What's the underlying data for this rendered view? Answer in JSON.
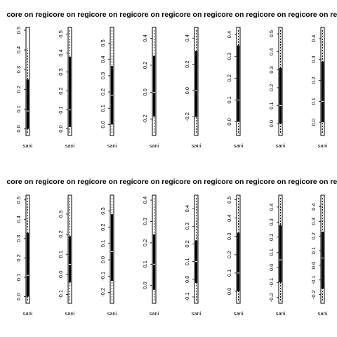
{
  "chart_data": [
    {
      "type": "boxplot",
      "title": "core on regi",
      "category": "sani",
      "yticks": [
        "0.0",
        "0.1",
        "0.2",
        "0.3",
        "0.4",
        "0.5"
      ],
      "ylim": [
        -0.02,
        0.5
      ],
      "box": {
        "min": -0.02,
        "q1": 0.0,
        "median": 0.09,
        "q3": 0.25,
        "max": 0.41
      }
    },
    {
      "type": "boxplot",
      "title": "core on regi",
      "category": "sani",
      "yticks": [
        "0.0",
        "0.1",
        "0.2",
        "0.3",
        "0.4",
        "0.5"
      ],
      "ylim": [
        -0.02,
        0.52
      ],
      "box": {
        "min": -0.02,
        "q1": 0.01,
        "median": 0.1,
        "q3": 0.38,
        "max": 0.52
      }
    },
    {
      "type": "boxplot",
      "title": "core on regi",
      "category": "sani",
      "yticks": [
        "0.0",
        "0.1",
        "0.2",
        "0.3",
        "0.4",
        "0.5"
      ],
      "ylim": [
        -0.05,
        0.58
      ],
      "box": {
        "min": -0.05,
        "q1": 0.0,
        "median": 0.18,
        "q3": 0.36,
        "max": 0.58
      }
    },
    {
      "type": "boxplot",
      "title": "core on regi",
      "category": "sani",
      "yticks": [
        "-0.2",
        "0.0",
        "0.2",
        "0.4"
      ],
      "ylim": [
        -0.3,
        0.46
      ],
      "box": {
        "min": -0.3,
        "q1": -0.18,
        "median": 0.0,
        "q3": 0.27,
        "max": 0.46
      }
    },
    {
      "type": "boxplot",
      "title": "core on regi",
      "category": "sani",
      "yticks": [
        "-0.2",
        "0.0",
        "0.2",
        "0.4"
      ],
      "ylim": [
        -0.32,
        0.46
      ],
      "box": {
        "min": -0.32,
        "q1": -0.2,
        "median": 0.0,
        "q3": 0.3,
        "max": 0.46
      }
    },
    {
      "type": "boxplot",
      "title": "core on regi",
      "category": "sani",
      "yticks": [
        "0.0",
        "0.1",
        "0.2",
        "0.3",
        "0.4"
      ],
      "ylim": [
        -0.05,
        0.42
      ],
      "box": {
        "min": -0.05,
        "q1": 0.0,
        "median": 0.1,
        "q3": 0.35,
        "max": 0.42
      }
    },
    {
      "type": "boxplot",
      "title": "core on regi",
      "category": "sani",
      "yticks": [
        "0.0",
        "0.1",
        "0.2",
        "0.3",
        "0.4",
        "0.5"
      ],
      "ylim": [
        -0.05,
        0.52
      ],
      "box": {
        "min": -0.05,
        "q1": 0.0,
        "median": 0.1,
        "q3": 0.31,
        "max": 0.52
      }
    },
    {
      "type": "boxplot",
      "title": "core on regi",
      "category": "sani",
      "yticks": [
        "0.0",
        "0.1",
        "0.2",
        "0.3",
        "0.4"
      ],
      "ylim": [
        -0.05,
        0.44
      ],
      "box": {
        "min": -0.05,
        "q1": 0.0,
        "median": 0.1,
        "q3": 0.29,
        "max": 0.44
      }
    },
    {
      "type": "boxplot",
      "title": "core on regi",
      "category": "sani",
      "yticks": [
        "0.0",
        "0.1",
        "0.2",
        "0.3",
        "0.4",
        "0.5"
      ],
      "ylim": [
        -0.02,
        0.51
      ],
      "box": {
        "min": -0.02,
        "q1": 0.0,
        "median": 0.11,
        "q3": 0.33,
        "max": 0.51
      }
    },
    {
      "type": "boxplot",
      "title": "core on regi",
      "category": "sani",
      "yticks": [
        "-0.1",
        "0.0",
        "0.1",
        "0.2",
        "0.3"
      ],
      "ylim": [
        -0.13,
        0.38
      ],
      "box": {
        "min": -0.13,
        "q1": -0.04,
        "median": 0.05,
        "q3": 0.19,
        "max": 0.38
      }
    },
    {
      "type": "boxplot",
      "title": "core on regi",
      "category": "sani",
      "yticks": [
        "-0.2",
        "-0.1",
        "0.0",
        "0.1",
        "0.2",
        "0.3"
      ],
      "ylim": [
        -0.25,
        0.38
      ],
      "box": {
        "min": -0.25,
        "q1": -0.13,
        "median": 0.05,
        "q3": 0.28,
        "max": 0.38
      }
    },
    {
      "type": "boxplot",
      "title": "core on regi",
      "category": "sani",
      "yticks": [
        "0.0",
        "0.1",
        "0.2",
        "0.3",
        "0.4"
      ],
      "ylim": [
        -0.07,
        0.41
      ],
      "box": {
        "min": -0.07,
        "q1": -0.02,
        "median": 0.1,
        "q3": 0.24,
        "max": 0.41
      }
    },
    {
      "type": "boxplot",
      "title": "core on regi",
      "category": "sani",
      "yticks": [
        "-0.1",
        "0.0",
        "0.1",
        "0.2",
        "0.3",
        "0.4"
      ],
      "ylim": [
        -0.12,
        0.46
      ],
      "box": {
        "min": -0.12,
        "q1": -0.02,
        "median": 0.1,
        "q3": 0.22,
        "max": 0.46
      }
    },
    {
      "type": "boxplot",
      "title": "core on regi",
      "category": "sani",
      "yticks": [
        "0.0",
        "0.1",
        "0.2",
        "0.3",
        "0.4",
        "0.5"
      ],
      "ylim": [
        -0.05,
        0.51
      ],
      "box": {
        "min": -0.05,
        "q1": 0.0,
        "median": 0.1,
        "q3": 0.32,
        "max": 0.51
      }
    },
    {
      "type": "boxplot",
      "title": "core on regi",
      "category": "sani",
      "yticks": [
        "-0.2",
        "-0.1",
        "0.0",
        "0.1",
        "0.2",
        "0.3",
        "0.4"
      ],
      "ylim": [
        -0.22,
        0.46
      ],
      "box": {
        "min": -0.22,
        "q1": -0.1,
        "median": 0.05,
        "q3": 0.28,
        "max": 0.46
      }
    },
    {
      "type": "boxplot",
      "title": "core on regi",
      "category": "sani",
      "yticks": [
        "-0.2",
        "-0.1",
        "0.0",
        "0.1",
        "0.2",
        "0.3",
        "0.4"
      ],
      "ylim": [
        -0.24,
        0.46
      ],
      "box": {
        "min": -0.24,
        "q1": -0.16,
        "median": 0.05,
        "q3": 0.23,
        "max": 0.46
      }
    }
  ]
}
